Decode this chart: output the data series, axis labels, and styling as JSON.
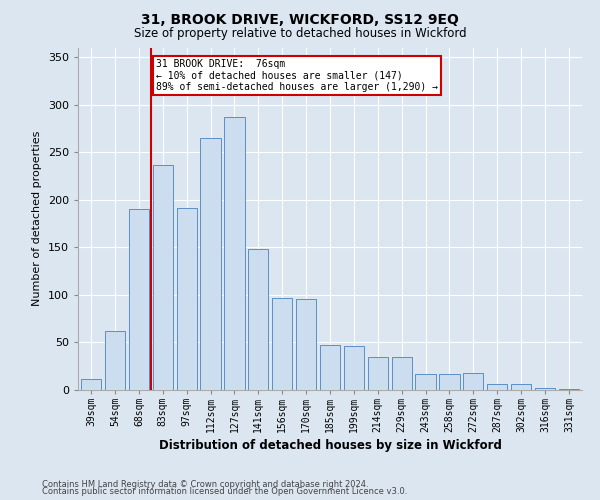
{
  "title1": "31, BROOK DRIVE, WICKFORD, SS12 9EQ",
  "title2": "Size of property relative to detached houses in Wickford",
  "xlabel": "Distribution of detached houses by size in Wickford",
  "ylabel": "Number of detached properties",
  "footnote1": "Contains HM Land Registry data © Crown copyright and database right 2024.",
  "footnote2": "Contains public sector information licensed under the Open Government Licence v3.0.",
  "bar_labels": [
    "39sqm",
    "54sqm",
    "68sqm",
    "83sqm",
    "97sqm",
    "112sqm",
    "127sqm",
    "141sqm",
    "156sqm",
    "170sqm",
    "185sqm",
    "199sqm",
    "214sqm",
    "229sqm",
    "243sqm",
    "258sqm",
    "272sqm",
    "287sqm",
    "302sqm",
    "316sqm",
    "331sqm"
  ],
  "bar_values": [
    12,
    62,
    190,
    237,
    191,
    265,
    287,
    148,
    97,
    96,
    47,
    46,
    35,
    35,
    17,
    17,
    18,
    6,
    6,
    2,
    1
  ],
  "bar_color": "#ccddf0",
  "bar_edge_color": "#5b8ec9",
  "bg_color": "#dce6f1",
  "plot_bg_color": "#dce6f1",
  "grid_color": "#ffffff",
  "red_line_x": 2.5,
  "annotation_text1": "31 BROOK DRIVE:  76sqm",
  "annotation_text2": "← 10% of detached houses are smaller (147)",
  "annotation_text3": "89% of semi-detached houses are larger (1,290) →",
  "annotation_box_color": "#ffffff",
  "annotation_border_color": "#cc0000",
  "ylim": [
    0,
    360
  ],
  "yticks": [
    0,
    50,
    100,
    150,
    200,
    250,
    300,
    350
  ]
}
